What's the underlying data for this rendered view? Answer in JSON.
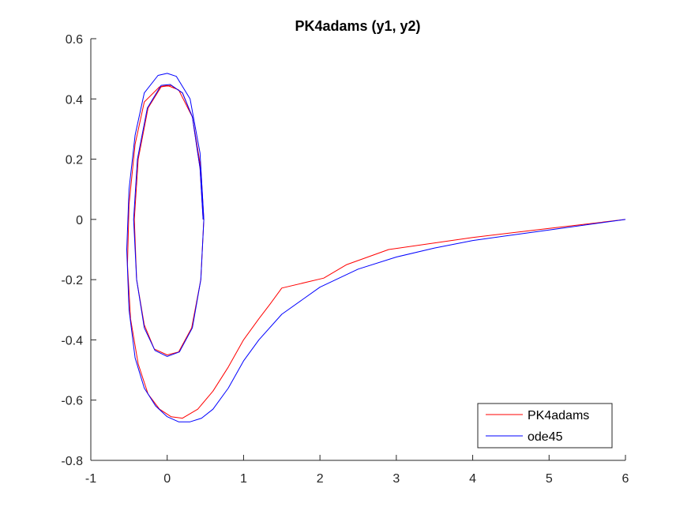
{
  "chart_data": {
    "type": "line",
    "title": "PK4adams (y1, y2)",
    "xlabel": "",
    "ylabel": "",
    "xlim": [
      -1,
      6
    ],
    "ylim": [
      -0.8,
      0.6
    ],
    "xticks": [
      -1,
      0,
      1,
      2,
      3,
      4,
      5,
      6
    ],
    "yticks": [
      -0.8,
      -0.6,
      -0.4,
      -0.2,
      0,
      0.2,
      0.4,
      0.6
    ],
    "xtick_labels": [
      "-1",
      "0",
      "1",
      "2",
      "3",
      "4",
      "5",
      "6"
    ],
    "ytick_labels": [
      "-0.8",
      "-0.6",
      "-0.4",
      "-0.2",
      "0",
      "0.2",
      "0.4",
      "0.6"
    ],
    "grid": false,
    "legend_position": "bottom-right",
    "series": [
      {
        "name": "PK4adams",
        "color": "#ff0000",
        "points": [
          [
            6.0,
            0.0
          ],
          [
            5.0,
            -0.03
          ],
          [
            4.0,
            -0.06
          ],
          [
            2.9,
            -0.1
          ],
          [
            2.35,
            -0.15
          ],
          [
            2.05,
            -0.195
          ],
          [
            1.5,
            -0.228
          ],
          [
            1.35,
            -0.28
          ],
          [
            1.2,
            -0.33
          ],
          [
            1.0,
            -0.4
          ],
          [
            0.8,
            -0.49
          ],
          [
            0.6,
            -0.57
          ],
          [
            0.4,
            -0.63
          ],
          [
            0.2,
            -0.66
          ],
          [
            0.05,
            -0.655
          ],
          [
            -0.1,
            -0.63
          ],
          [
            -0.25,
            -0.58
          ],
          [
            -0.38,
            -0.48
          ],
          [
            -0.48,
            -0.33
          ],
          [
            -0.52,
            -0.15
          ],
          [
            -0.5,
            0.05
          ],
          [
            -0.42,
            0.25
          ],
          [
            -0.3,
            0.39
          ],
          [
            -0.1,
            0.44
          ],
          [
            0.0,
            0.445
          ],
          [
            0.15,
            0.43
          ],
          [
            0.33,
            0.34
          ],
          [
            0.44,
            0.17
          ],
          [
            0.48,
            0.0
          ],
          [
            0.44,
            -0.2
          ],
          [
            0.32,
            -0.36
          ],
          [
            0.15,
            -0.44
          ],
          [
            0.0,
            -0.45
          ],
          [
            -0.17,
            -0.43
          ],
          [
            -0.3,
            -0.35
          ],
          [
            -0.4,
            -0.2
          ],
          [
            -0.43,
            0.0
          ],
          [
            -0.38,
            0.2
          ],
          [
            -0.25,
            0.37
          ],
          [
            -0.08,
            0.44
          ],
          [
            0.05,
            0.445
          ],
          [
            0.2,
            0.42
          ],
          [
            0.33,
            0.34
          ],
          [
            0.43,
            0.17
          ],
          [
            0.47,
            0.0
          ]
        ]
      },
      {
        "name": "ode45",
        "color": "#0000ff",
        "points": [
          [
            6.0,
            0.0
          ],
          [
            5.0,
            -0.035
          ],
          [
            4.0,
            -0.07
          ],
          [
            3.5,
            -0.095
          ],
          [
            3.0,
            -0.125
          ],
          [
            2.5,
            -0.165
          ],
          [
            2.0,
            -0.225
          ],
          [
            1.5,
            -0.315
          ],
          [
            1.2,
            -0.4
          ],
          [
            1.0,
            -0.47
          ],
          [
            0.8,
            -0.56
          ],
          [
            0.6,
            -0.63
          ],
          [
            0.45,
            -0.66
          ],
          [
            0.3,
            -0.672
          ],
          [
            0.15,
            -0.672
          ],
          [
            0.0,
            -0.655
          ],
          [
            -0.15,
            -0.62
          ],
          [
            -0.3,
            -0.56
          ],
          [
            -0.42,
            -0.46
          ],
          [
            -0.5,
            -0.3
          ],
          [
            -0.53,
            -0.1
          ],
          [
            -0.5,
            0.1
          ],
          [
            -0.42,
            0.28
          ],
          [
            -0.3,
            0.42
          ],
          [
            -0.12,
            0.478
          ],
          [
            0.0,
            0.485
          ],
          [
            0.12,
            0.475
          ],
          [
            0.3,
            0.4
          ],
          [
            0.43,
            0.22
          ],
          [
            0.48,
            0.0
          ],
          [
            0.44,
            -0.2
          ],
          [
            0.33,
            -0.36
          ],
          [
            0.16,
            -0.44
          ],
          [
            0.0,
            -0.455
          ],
          [
            -0.16,
            -0.435
          ],
          [
            -0.3,
            -0.36
          ],
          [
            -0.4,
            -0.2
          ],
          [
            -0.44,
            0.0
          ],
          [
            -0.39,
            0.2
          ],
          [
            -0.26,
            0.37
          ],
          [
            -0.08,
            0.445
          ],
          [
            0.04,
            0.448
          ],
          [
            0.2,
            0.42
          ],
          [
            0.33,
            0.34
          ],
          [
            0.43,
            0.17
          ],
          [
            0.47,
            0.0
          ]
        ]
      }
    ]
  }
}
